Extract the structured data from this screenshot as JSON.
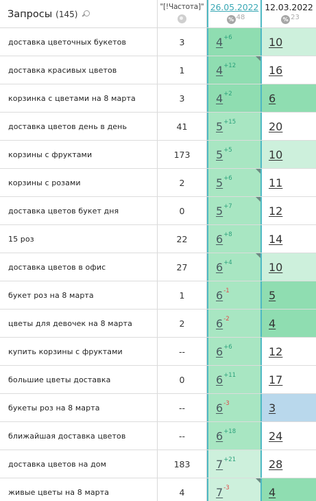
{
  "header": {
    "title": "Запросы",
    "count": "(145)",
    "frequency_label": "\"[!Частота]\"",
    "dates": [
      {
        "label": "26.05.2022",
        "count": "48"
      },
      {
        "label": "12.03.2022",
        "count": "23"
      }
    ],
    "percent_symbol": "%"
  },
  "rows": [
    {
      "query": "доставка цветочных букетов",
      "freq": "3",
      "pos1": "4",
      "delta1": "+6",
      "pos2": "10"
    },
    {
      "query": "доставка красивых цветов",
      "freq": "1",
      "pos1": "4",
      "delta1": "+12",
      "pos2": "16"
    },
    {
      "query": "корзинка с цветами на 8 марта",
      "freq": "3",
      "pos1": "4",
      "delta1": "+2",
      "pos2": "6"
    },
    {
      "query": "доставка цветов день в день",
      "freq": "41",
      "pos1": "5",
      "delta1": "+15",
      "pos2": "20"
    },
    {
      "query": "корзины с фруктами",
      "freq": "173",
      "pos1": "5",
      "delta1": "+5",
      "pos2": "10"
    },
    {
      "query": "корзины с розами",
      "freq": "2",
      "pos1": "5",
      "delta1": "+6",
      "pos2": "11"
    },
    {
      "query": "доставка цветов букет дня",
      "freq": "0",
      "pos1": "5",
      "delta1": "+7",
      "pos2": "12"
    },
    {
      "query": "15 роз",
      "freq": "22",
      "pos1": "6",
      "delta1": "+8",
      "pos2": "14"
    },
    {
      "query": "доставка цветов в офис",
      "freq": "27",
      "pos1": "6",
      "delta1": "+4",
      "pos2": "10"
    },
    {
      "query": "букет роз на 8 марта",
      "freq": "1",
      "pos1": "6",
      "delta1": "-1",
      "pos2": "5"
    },
    {
      "query": "цветы для девочек на 8 марта",
      "freq": "2",
      "pos1": "6",
      "delta1": "-2",
      "pos2": "4"
    },
    {
      "query": "купить корзины с фруктами",
      "freq": "--",
      "pos1": "6",
      "delta1": "+6",
      "pos2": "12"
    },
    {
      "query": "большие цветы доставка",
      "freq": "0",
      "pos1": "6",
      "delta1": "+11",
      "pos2": "17"
    },
    {
      "query": "букеты роз на 8 марта",
      "freq": "--",
      "pos1": "6",
      "delta1": "-3",
      "pos2": "3"
    },
    {
      "query": "ближайшая доставка цветов",
      "freq": "--",
      "pos1": "6",
      "delta1": "+18",
      "pos2": "24"
    },
    {
      "query": "доставка цветов на дом",
      "freq": "183",
      "pos1": "7",
      "delta1": "+21",
      "pos2": "28"
    },
    {
      "query": "живые цветы на 8 марта",
      "freq": "4",
      "pos1": "7",
      "delta1": "-3",
      "pos2": "4"
    }
  ],
  "colors": {
    "accent": "#4db8c3",
    "green_strong": "#8fddb1",
    "green_mid": "#a8e6c2",
    "green_light": "#cdf0dc",
    "blue": "#b9d8ec",
    "delta_up": "#2aa07a",
    "delta_down": "#e04848"
  },
  "icons": {
    "search": "search-icon",
    "globe": "globe-icon",
    "percent": "percent-icon",
    "corner": "corner-marker-icon"
  }
}
